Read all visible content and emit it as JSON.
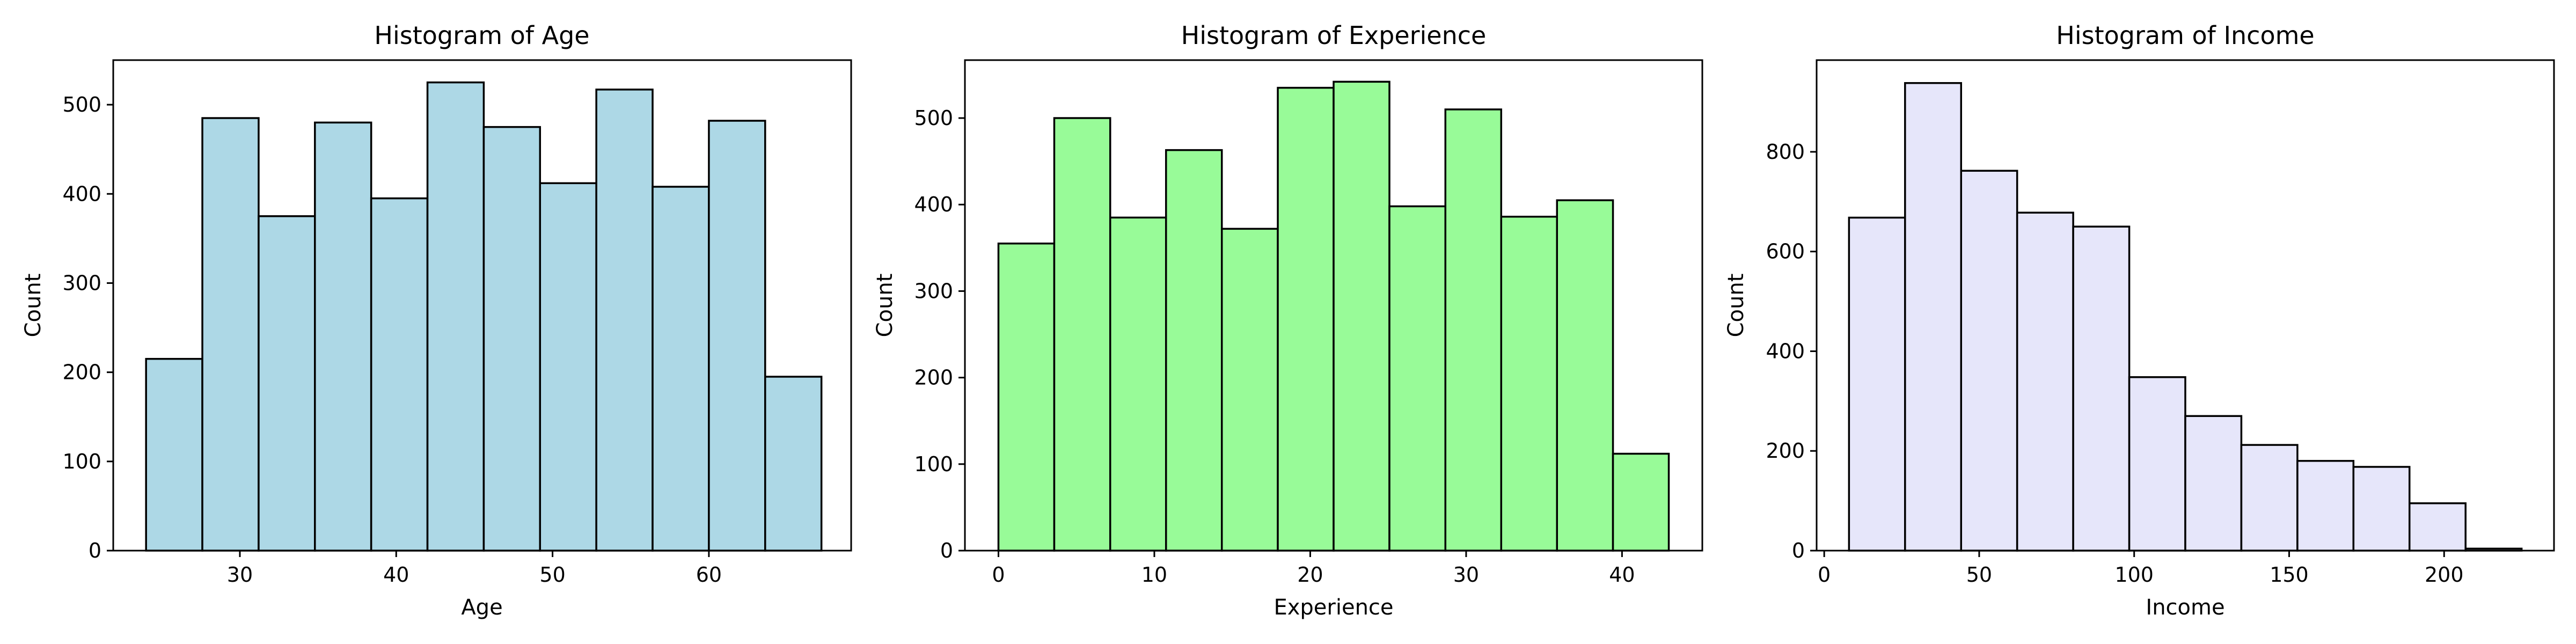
{
  "chart_data": [
    {
      "type": "bar",
      "title": "Histogram of Age",
      "xlabel": "Age",
      "ylabel": "Count",
      "color": "#add8e6",
      "edge_color": "#000000",
      "xlim": [
        21.9,
        69.1
      ],
      "ylim": [
        0,
        550
      ],
      "xticks": [
        30,
        40,
        50,
        60
      ],
      "yticks": [
        0,
        100,
        200,
        300,
        400,
        500
      ],
      "bins": [
        {
          "x0": 24.0,
          "x1": 27.6,
          "count": 215
        },
        {
          "x0": 27.6,
          "x1": 31.2,
          "count": 485
        },
        {
          "x0": 31.2,
          "x1": 34.8,
          "count": 375
        },
        {
          "x0": 34.8,
          "x1": 38.4,
          "count": 480
        },
        {
          "x0": 38.4,
          "x1": 42.0,
          "count": 395
        },
        {
          "x0": 42.0,
          "x1": 45.6,
          "count": 525
        },
        {
          "x0": 45.6,
          "x1": 49.2,
          "count": 475
        },
        {
          "x0": 49.2,
          "x1": 52.8,
          "count": 412
        },
        {
          "x0": 52.8,
          "x1": 56.4,
          "count": 517
        },
        {
          "x0": 56.4,
          "x1": 60.0,
          "count": 408
        },
        {
          "x0": 60.0,
          "x1": 63.6,
          "count": 482
        },
        {
          "x0": 63.6,
          "x1": 67.2,
          "count": 195
        }
      ]
    },
    {
      "type": "bar",
      "title": "Histogram of Experience",
      "xlabel": "Experience",
      "ylabel": "Count",
      "color": "#98fb98",
      "edge_color": "#000000",
      "xlim": [
        -2.15,
        45.15
      ],
      "ylim": [
        0,
        567
      ],
      "xticks": [
        0,
        10,
        20,
        30,
        40
      ],
      "yticks": [
        0,
        100,
        200,
        300,
        400,
        500
      ],
      "bins": [
        {
          "x0": 0.0,
          "x1": 3.58,
          "count": 355
        },
        {
          "x0": 3.58,
          "x1": 7.17,
          "count": 500
        },
        {
          "x0": 7.17,
          "x1": 10.75,
          "count": 385
        },
        {
          "x0": 10.75,
          "x1": 14.33,
          "count": 463
        },
        {
          "x0": 14.33,
          "x1": 17.92,
          "count": 372
        },
        {
          "x0": 17.92,
          "x1": 21.5,
          "count": 535
        },
        {
          "x0": 21.5,
          "x1": 25.08,
          "count": 542
        },
        {
          "x0": 25.08,
          "x1": 28.67,
          "count": 398
        },
        {
          "x0": 28.67,
          "x1": 32.25,
          "count": 510
        },
        {
          "x0": 32.25,
          "x1": 35.83,
          "count": 386
        },
        {
          "x0": 35.83,
          "x1": 39.42,
          "count": 405
        },
        {
          "x0": 39.42,
          "x1": 43.0,
          "count": 112
        }
      ]
    },
    {
      "type": "bar",
      "title": "Histogram of Income",
      "xlabel": "Income",
      "ylabel": "Count",
      "color": "#e6e6fa",
      "edge_color": "#000000",
      "xlim": [
        -2.45,
        235.45
      ],
      "ylim": [
        0,
        984
      ],
      "xticks": [
        0,
        50,
        100,
        150,
        200
      ],
      "yticks": [
        0,
        200,
        400,
        600,
        800
      ],
      "bins": [
        {
          "x0": 8.0,
          "x1": 26.08,
          "count": 668
        },
        {
          "x0": 26.08,
          "x1": 44.17,
          "count": 938
        },
        {
          "x0": 44.17,
          "x1": 62.25,
          "count": 762
        },
        {
          "x0": 62.25,
          "x1": 80.33,
          "count": 678
        },
        {
          "x0": 80.33,
          "x1": 98.42,
          "count": 650
        },
        {
          "x0": 98.42,
          "x1": 116.5,
          "count": 348
        },
        {
          "x0": 116.5,
          "x1": 134.58,
          "count": 270
        },
        {
          "x0": 134.58,
          "x1": 152.67,
          "count": 212
        },
        {
          "x0": 152.67,
          "x1": 170.75,
          "count": 180
        },
        {
          "x0": 170.75,
          "x1": 188.83,
          "count": 168
        },
        {
          "x0": 188.83,
          "x1": 206.92,
          "count": 95
        },
        {
          "x0": 206.92,
          "x1": 225.0,
          "count": 4
        }
      ]
    }
  ]
}
